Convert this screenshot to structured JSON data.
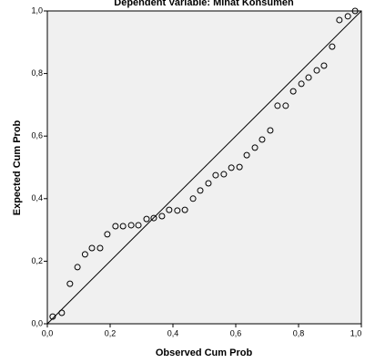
{
  "chart_data": {
    "type": "scatter",
    "title": "Dependent Variable: Minat Konsumen",
    "xlabel": "Observed Cum Prob",
    "ylabel": "Expected Cum Prob",
    "color": "#000000",
    "x": [
      0.017,
      0.046,
      0.072,
      0.096,
      0.12,
      0.142,
      0.168,
      0.191,
      0.217,
      0.241,
      0.267,
      0.29,
      0.316,
      0.339,
      0.365,
      0.388,
      0.414,
      0.438,
      0.464,
      0.487,
      0.513,
      0.536,
      0.562,
      0.586,
      0.612,
      0.635,
      0.661,
      0.684,
      0.71,
      0.733,
      0.759,
      0.783,
      0.809,
      0.832,
      0.858,
      0.881,
      0.907,
      0.93,
      0.957,
      0.98
    ],
    "values": [
      0.023,
      0.035,
      0.128,
      0.181,
      0.222,
      0.242,
      0.242,
      0.286,
      0.312,
      0.312,
      0.315,
      0.315,
      0.335,
      0.338,
      0.344,
      0.364,
      0.362,
      0.364,
      0.4,
      0.426,
      0.449,
      0.475,
      0.478,
      0.499,
      0.501,
      0.539,
      0.563,
      0.589,
      0.618,
      0.697,
      0.697,
      0.743,
      0.767,
      0.787,
      0.81,
      0.825,
      0.886,
      0.971,
      0.983,
      1.0
    ],
    "xlim": [
      0,
      1
    ],
    "ylim": [
      0,
      1
    ],
    "xticks": [
      {
        "value": 0,
        "label": "0,0"
      },
      {
        "value": 0.2,
        "label": "0,2"
      },
      {
        "value": 0.4,
        "label": "0,4"
      },
      {
        "value": 0.6,
        "label": "0,6"
      },
      {
        "value": 0.8,
        "label": "0,8"
      },
      {
        "value": 1,
        "label": "1,0"
      }
    ],
    "yticks": [
      {
        "value": 0,
        "label": "0,0"
      },
      {
        "value": 0.2,
        "label": "0,2"
      },
      {
        "value": 0.4,
        "label": "0,4"
      },
      {
        "value": 0.6,
        "label": "0,6"
      },
      {
        "value": 0.8,
        "label": "0,8"
      },
      {
        "value": 1,
        "label": "1,0"
      }
    ]
  }
}
